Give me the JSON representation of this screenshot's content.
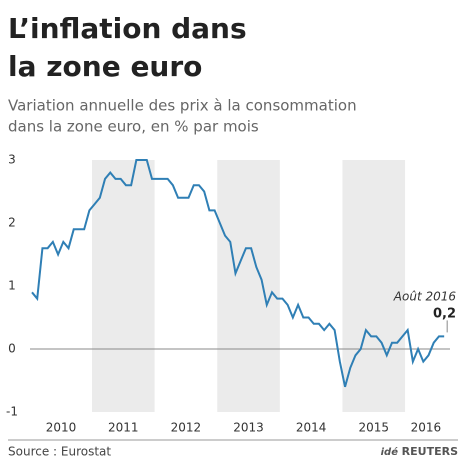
{
  "chart_data": {
    "type": "line",
    "title": [
      "L’inflation dans",
      "la zone euro"
    ],
    "subtitle": [
      "Variation annuelle des prix à la consommation",
      "dans la zone euro, en % par mois"
    ],
    "x": [
      "2010-01",
      "2010-02",
      "2010-03",
      "2010-04",
      "2010-05",
      "2010-06",
      "2010-07",
      "2010-08",
      "2010-09",
      "2010-10",
      "2010-11",
      "2010-12",
      "2011-01",
      "2011-02",
      "2011-03",
      "2011-04",
      "2011-05",
      "2011-06",
      "2011-07",
      "2011-08",
      "2011-09",
      "2011-10",
      "2011-11",
      "2011-12",
      "2012-01",
      "2012-02",
      "2012-03",
      "2012-04",
      "2012-05",
      "2012-06",
      "2012-07",
      "2012-08",
      "2012-09",
      "2012-10",
      "2012-11",
      "2012-12",
      "2013-01",
      "2013-02",
      "2013-03",
      "2013-04",
      "2013-05",
      "2013-06",
      "2013-07",
      "2013-08",
      "2013-09",
      "2013-10",
      "2013-11",
      "2013-12",
      "2014-01",
      "2014-02",
      "2014-03",
      "2014-04",
      "2014-05",
      "2014-06",
      "2014-07",
      "2014-08",
      "2014-09",
      "2014-10",
      "2014-11",
      "2014-12",
      "2015-01",
      "2015-02",
      "2015-03",
      "2015-04",
      "2015-05",
      "2015-06",
      "2015-07",
      "2015-08",
      "2015-09",
      "2015-10",
      "2015-11",
      "2015-12",
      "2016-01",
      "2016-02",
      "2016-03",
      "2016-04",
      "2016-05",
      "2016-06",
      "2016-07",
      "2016-08"
    ],
    "series": [
      {
        "name": "Inflation",
        "color": "#2f7fb5",
        "values": [
          0.9,
          0.8,
          1.6,
          1.6,
          1.7,
          1.5,
          1.7,
          1.6,
          1.9,
          1.9,
          1.9,
          2.2,
          2.3,
          2.4,
          2.7,
          2.8,
          2.7,
          2.7,
          2.6,
          2.6,
          3.0,
          3.0,
          3.0,
          2.7,
          2.7,
          2.7,
          2.7,
          2.6,
          2.4,
          2.4,
          2.4,
          2.6,
          2.6,
          2.5,
          2.2,
          2.2,
          2.0,
          1.8,
          1.7,
          1.2,
          1.4,
          1.6,
          1.6,
          1.3,
          1.1,
          0.7,
          0.9,
          0.8,
          0.8,
          0.7,
          0.5,
          0.7,
          0.5,
          0.5,
          0.4,
          0.4,
          0.3,
          0.4,
          0.3,
          -0.2,
          -0.6,
          -0.3,
          -0.1,
          0.0,
          0.3,
          0.2,
          0.2,
          0.1,
          -0.1,
          0.1,
          0.1,
          0.2,
          0.3,
          -0.2,
          0.0,
          -0.2,
          -0.1,
          0.1,
          0.2,
          0.2
        ]
      }
    ],
    "xticks": [
      "2010",
      "2011",
      "2012",
      "2013",
      "2014",
      "2015",
      "2016"
    ],
    "ylim": [
      -1,
      3
    ],
    "yticks": [
      -1,
      0,
      1,
      2,
      3
    ],
    "annotation": {
      "label": "Août 2016",
      "value_label": "0,2"
    },
    "source": "Source : Eurostat",
    "logo": [
      "idé",
      "REUTERS"
    ]
  }
}
